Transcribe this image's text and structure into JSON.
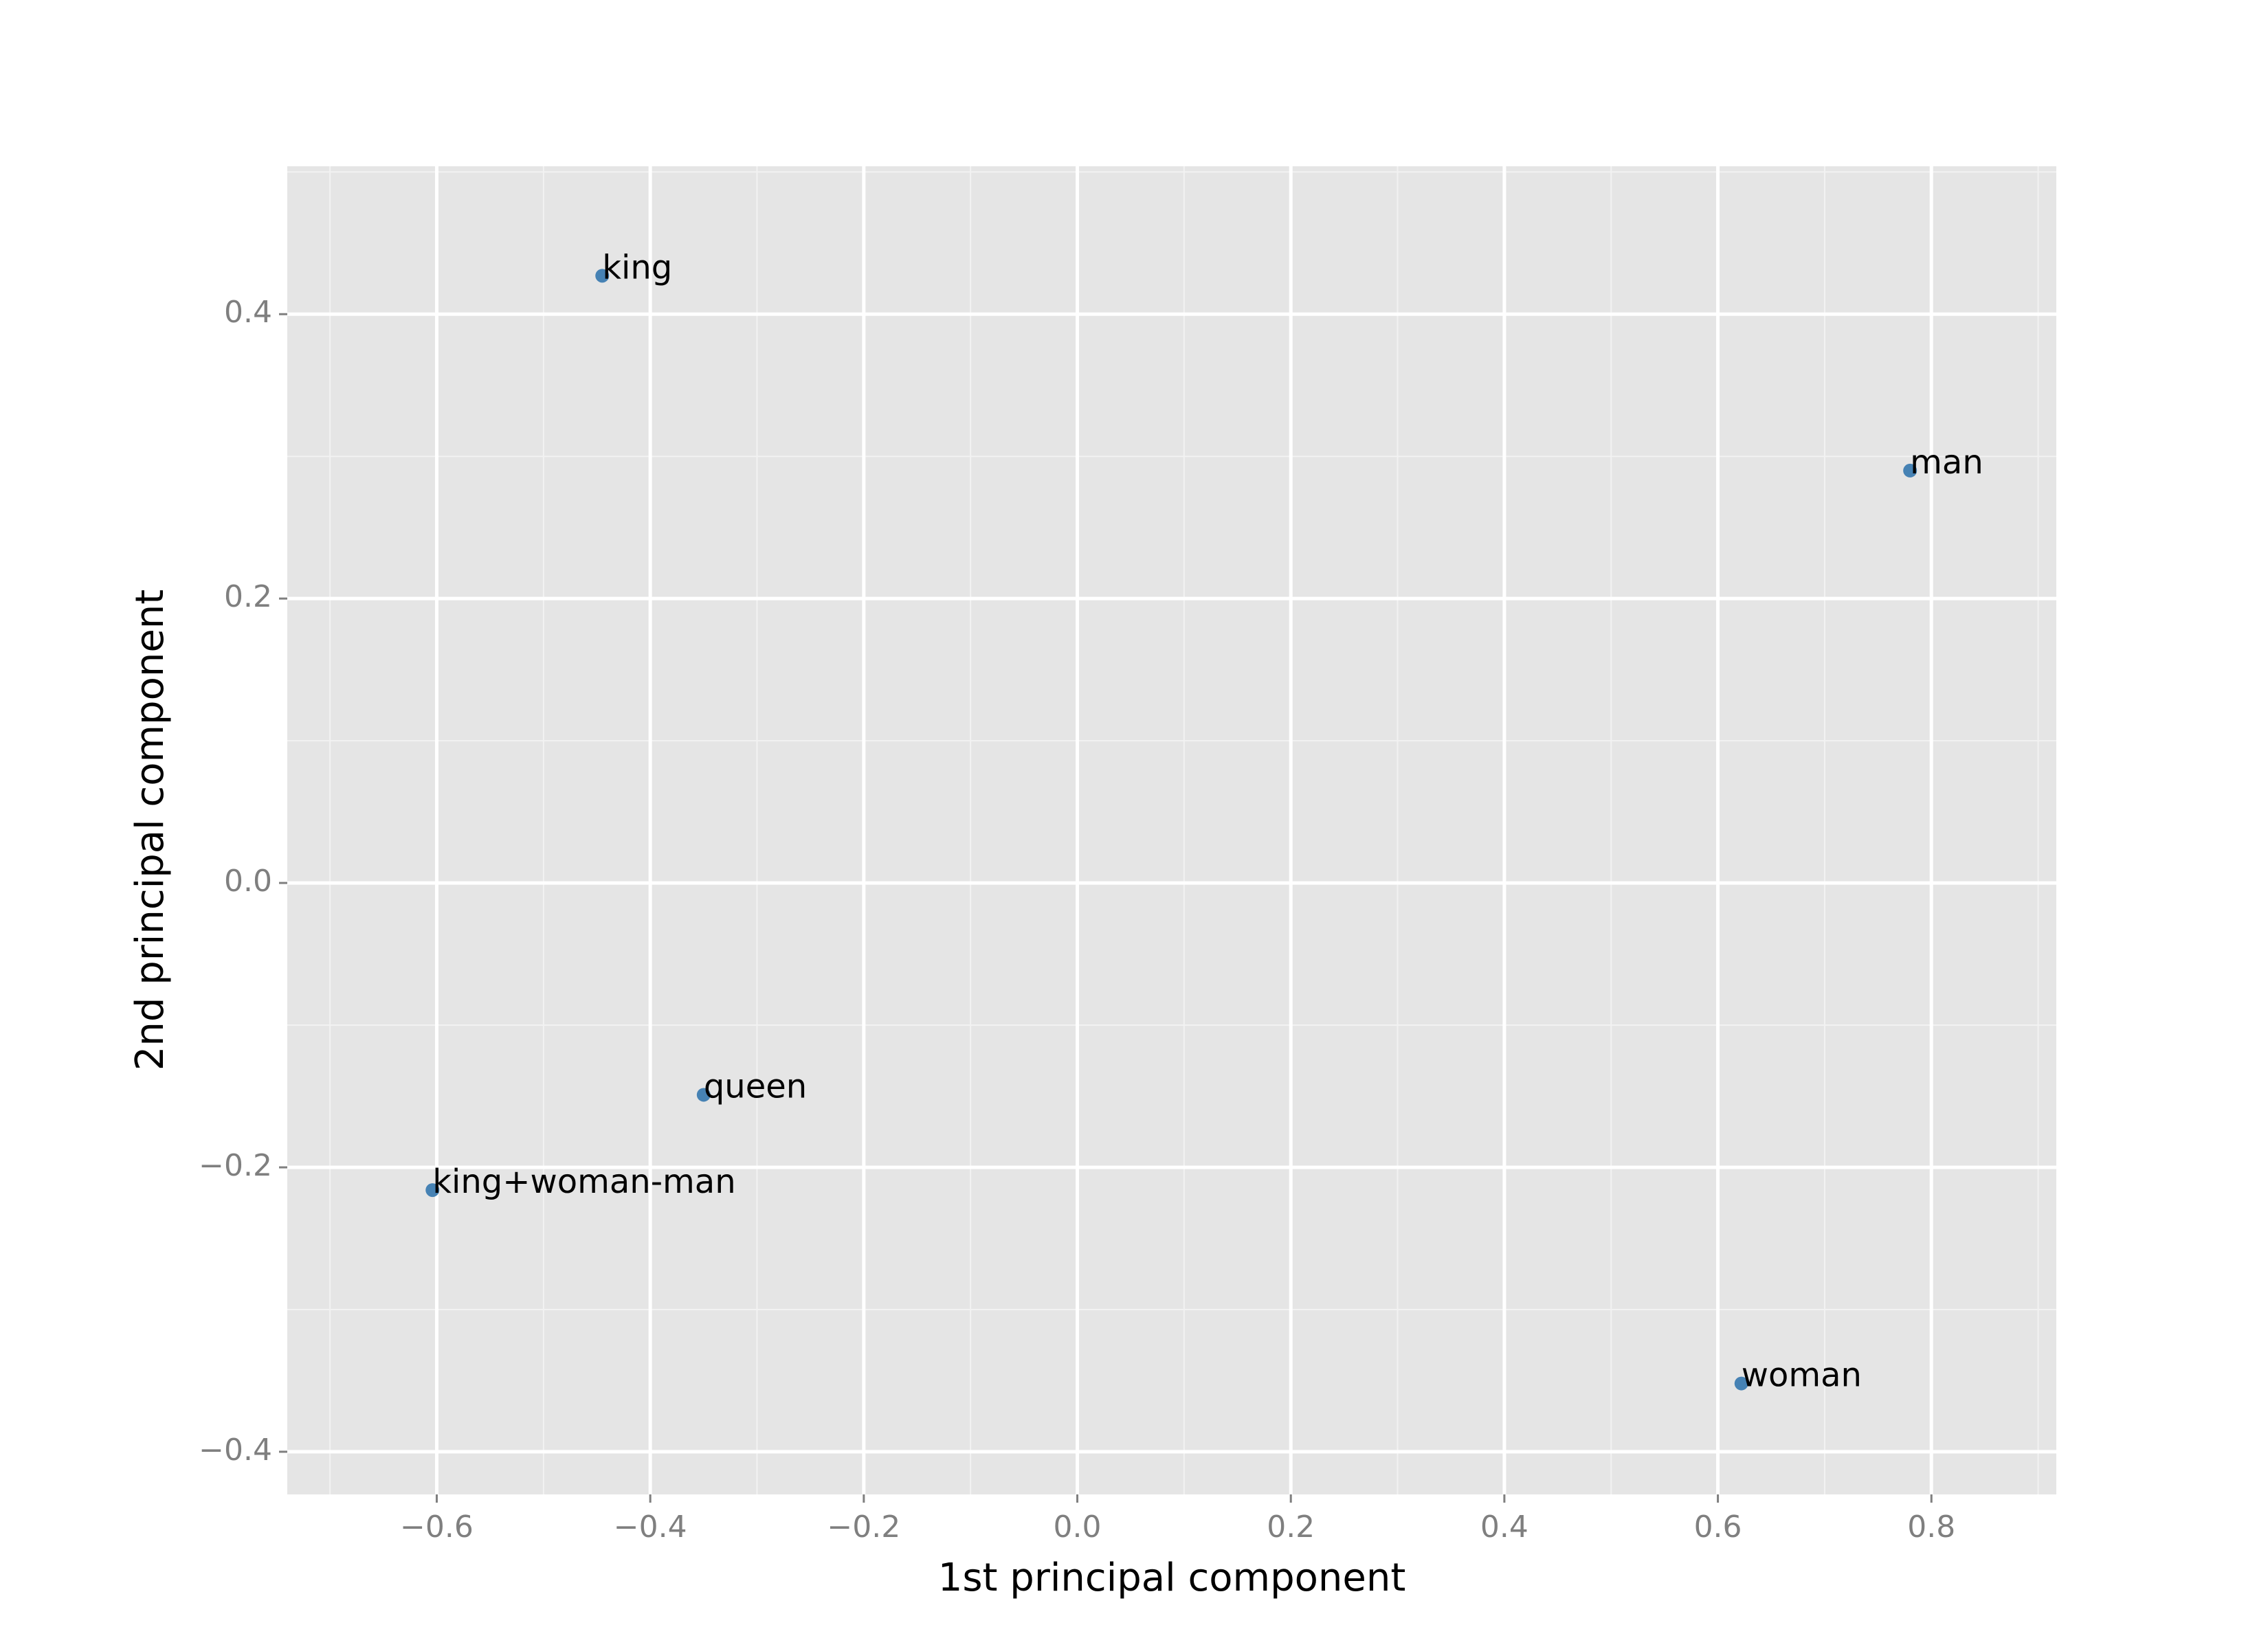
{
  "chart_data": {
    "type": "scatter",
    "x_label": "1st principal component",
    "y_label": "2nd principal component",
    "point_labels": [
      "king",
      "man",
      "queen",
      "king+woman-man",
      "woman"
    ],
    "x": [
      -0.445,
      0.78,
      -0.35,
      -0.604,
      0.622
    ],
    "values": [
      0.427,
      0.29,
      -0.149,
      -0.216,
      -0.352
    ],
    "color": "#4682b4",
    "xlim": [
      -0.74,
      0.917
    ],
    "ylim": [
      -0.43,
      0.504
    ],
    "xticks": [
      {
        "value": -0.6,
        "label": "−0.6"
      },
      {
        "value": -0.4,
        "label": "−0.4"
      },
      {
        "value": -0.2,
        "label": "−0.2"
      },
      {
        "value": 0,
        "label": "0.0"
      },
      0.2,
      0.4,
      0.6,
      0.8
    ],
    "yticks": [
      {
        "value": -0.4,
        "label": "−0.4"
      },
      {
        "value": -0.2,
        "label": "−0.2"
      },
      {
        "value": 0,
        "label": "0.0"
      },
      0.2,
      0.4
    ],
    "grid": true
  }
}
